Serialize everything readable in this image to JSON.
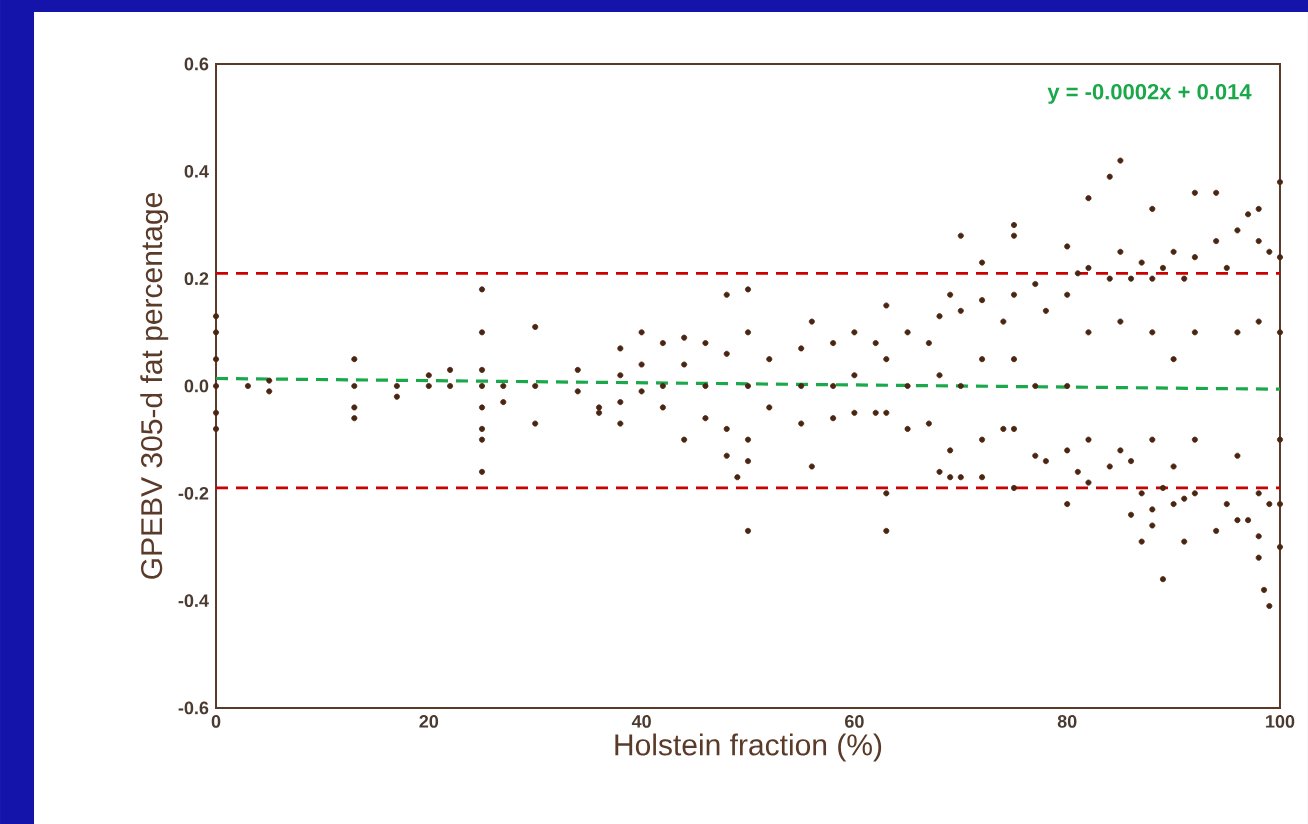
{
  "chart_data": {
    "type": "scatter",
    "xlabel": "Holstein fraction (%)",
    "ylabel": "GPEBV 305-d fat percentage",
    "annotations": [
      "y = -0.0002x + 0.014"
    ],
    "xlim": [
      0,
      100
    ],
    "xticks": [
      0,
      20,
      40,
      60,
      80,
      100
    ],
    "ylim": [
      -0.6,
      0.6
    ],
    "yticks": [
      -0.6,
      -0.4,
      -0.2,
      {
        "value": 0,
        "label": "0.0"
      },
      0.2,
      0.4,
      0.6
    ],
    "grid": false,
    "ref_lines": [
      {
        "axis": "y",
        "value": 0.21,
        "color": "#cc0000",
        "line_style": "dashed"
      },
      {
        "axis": "y",
        "value": -0.19,
        "color": "#cc0000",
        "line_style": "dashed"
      }
    ],
    "series": [
      {
        "type": "scatter",
        "color": "#4a2511",
        "marker": "circle",
        "x": [
          0,
          0,
          0,
          0,
          0,
          0,
          3,
          5,
          5,
          13,
          13,
          13,
          13,
          17,
          17,
          20,
          20,
          22,
          22,
          25,
          25,
          25,
          25,
          25,
          25,
          25,
          25,
          27,
          27,
          30,
          30,
          30,
          34,
          34,
          36,
          36,
          38,
          38,
          38,
          38,
          40,
          40,
          40,
          42,
          42,
          42,
          44,
          44,
          44,
          46,
          46,
          46,
          48,
          48,
          48,
          48,
          49,
          50,
          50,
          50,
          50,
          50,
          50,
          52,
          52,
          55,
          55,
          55,
          56,
          56,
          58,
          58,
          58,
          60,
          60,
          60,
          62,
          62,
          63,
          63,
          63,
          63,
          63,
          65,
          65,
          65,
          67,
          67,
          68,
          68,
          68,
          69,
          69,
          69,
          70,
          70,
          70,
          70,
          72,
          72,
          72,
          72,
          72,
          74,
          74,
          75,
          75,
          75,
          75,
          75,
          75,
          77,
          77,
          77,
          78,
          78,
          80,
          80,
          80,
          80,
          80,
          81,
          81,
          82,
          82,
          82,
          82,
          82,
          84,
          84,
          84,
          85,
          85,
          85,
          85,
          86,
          86,
          86,
          87,
          87,
          87,
          88,
          88,
          88,
          88,
          88,
          88,
          89,
          89,
          89,
          90,
          90,
          90,
          90,
          91,
          91,
          91,
          92,
          92,
          92,
          92,
          92,
          94,
          94,
          94,
          95,
          95,
          96,
          96,
          96,
          96,
          97,
          97,
          98,
          98,
          98,
          98,
          98,
          98,
          98.5,
          99,
          99,
          99,
          100,
          100,
          100,
          100,
          100,
          100
        ],
        "values": [
          0.13,
          0.1,
          0.05,
          0,
          -0.05,
          -0.08,
          0,
          0.01,
          -0.01,
          0.05,
          0,
          -0.04,
          -0.06,
          0,
          -0.02,
          0.02,
          0,
          0.03,
          0,
          0.18,
          0.1,
          0.03,
          0,
          -0.04,
          -0.08,
          -0.1,
          -0.16,
          0,
          -0.03,
          0.11,
          0,
          -0.07,
          0.03,
          -0.01,
          -0.04,
          -0.05,
          0.07,
          0.02,
          -0.03,
          -0.07,
          0.1,
          0.04,
          -0.01,
          0.08,
          0,
          -0.04,
          0.09,
          0.04,
          -0.1,
          0.08,
          0,
          -0.06,
          0.17,
          0.06,
          -0.08,
          -0.13,
          -0.17,
          0.18,
          0.1,
          0,
          -0.1,
          -0.14,
          -0.27,
          0.05,
          -0.04,
          0.07,
          0,
          -0.07,
          0.12,
          -0.15,
          0.08,
          0,
          -0.06,
          0.1,
          0.02,
          -0.05,
          0.08,
          -0.05,
          0.15,
          0.05,
          -0.05,
          -0.2,
          -0.27,
          0.1,
          0,
          -0.08,
          0.08,
          -0.07,
          0.13,
          0.02,
          -0.16,
          0.17,
          -0.12,
          -0.17,
          0.28,
          0.14,
          0,
          -0.17,
          0.23,
          0.16,
          0.05,
          -0.1,
          -0.17,
          0.12,
          -0.08,
          0.3,
          0.28,
          0.17,
          0.05,
          -0.08,
          -0.19,
          0.19,
          0,
          -0.13,
          0.14,
          -0.14,
          0.26,
          0.17,
          0,
          -0.12,
          -0.22,
          0.21,
          -0.16,
          0.35,
          0.22,
          0.1,
          -0.1,
          -0.18,
          0.39,
          0.2,
          -0.15,
          0.42,
          0.25,
          0.12,
          -0.12,
          0.2,
          -0.14,
          -0.24,
          0.23,
          -0.2,
          -0.29,
          0.33,
          0.2,
          0.1,
          -0.1,
          -0.23,
          -0.26,
          0.22,
          -0.19,
          -0.36,
          0.25,
          0.05,
          -0.15,
          -0.22,
          0.2,
          -0.21,
          -0.29,
          0.36,
          0.24,
          0.1,
          -0.1,
          -0.2,
          0.36,
          0.27,
          -0.27,
          0.22,
          -0.22,
          0.29,
          0.1,
          -0.13,
          -0.25,
          0.32,
          -0.25,
          0.33,
          0.27,
          0.12,
          -0.2,
          -0.28,
          -0.32,
          -0.38,
          0.25,
          -0.22,
          -0.41,
          0.38,
          0.24,
          0.1,
          -0.1,
          -0.22,
          -0.3
        ]
      },
      {
        "type": "line",
        "color": "#1aa84a",
        "marker": "none",
        "line_style": "dashed",
        "x": [
          0,
          100
        ],
        "values": [
          0.014,
          -0.006
        ]
      }
    ]
  }
}
